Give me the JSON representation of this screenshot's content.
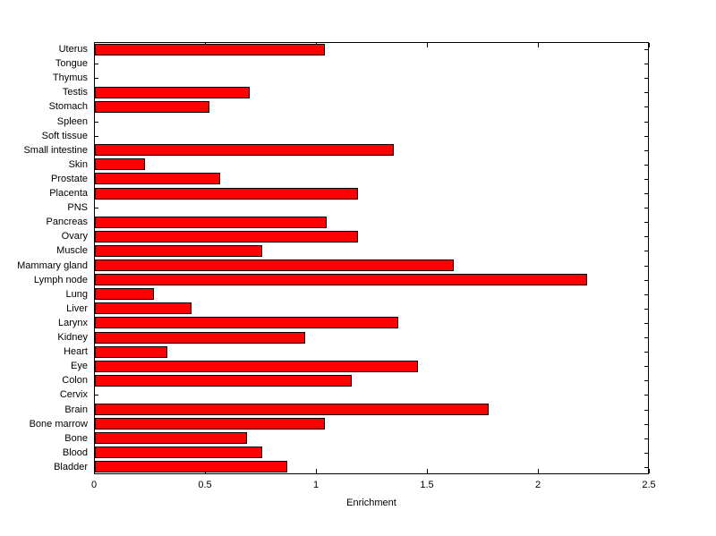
{
  "figure": {
    "background_color": "#ffffff",
    "axis_color": "#000000"
  },
  "chart_data": {
    "type": "bar",
    "orientation": "horizontal",
    "title": "",
    "xlabel": "Enrichment",
    "ylabel": "",
    "xlim": [
      0,
      2.5
    ],
    "xticks": [
      0,
      0.5,
      1,
      1.5,
      2,
      2.5
    ],
    "xtick_labels": [
      "0",
      "0.5",
      "1",
      "1.5",
      "2",
      "2.5"
    ],
    "grid": false,
    "legend": "none",
    "bar_color": "#ff0000",
    "bar_edge_color": "#000000",
    "categories": [
      "Uterus",
      "Tongue",
      "Thymus",
      "Testis",
      "Stomach",
      "Spleen",
      "Soft tissue",
      "Small intestine",
      "Skin",
      "Prostate",
      "Placenta",
      "PNS",
      "Pancreas",
      "Ovary",
      "Muscle",
      "Mammary gland",
      "Lymph node",
      "Lung",
      "Liver",
      "Larynx",
      "Kidney",
      "Heart",
      "Eye",
      "Colon",
      "Cervix",
      "Brain",
      "Bone marrow",
      "Bone",
      "Blood",
      "Bladder"
    ],
    "values": [
      1.04,
      0,
      0,
      0.7,
      0.52,
      0,
      0,
      1.35,
      0.23,
      0.57,
      1.19,
      0,
      1.05,
      1.19,
      0.76,
      1.62,
      2.22,
      0.27,
      0.44,
      1.37,
      0.95,
      0.33,
      1.46,
      1.16,
      0,
      1.78,
      1.04,
      0.69,
      0.76,
      0.87
    ]
  }
}
